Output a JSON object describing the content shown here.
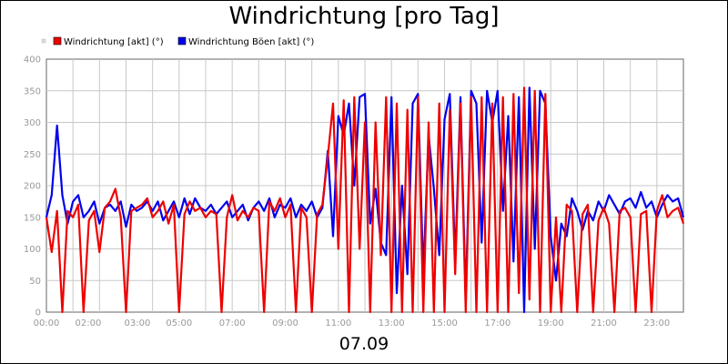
{
  "chart_data": {
    "type": "line",
    "title": "Windrichtung [pro Tag]",
    "date_label": "07.09",
    "grid": true,
    "legend_position": "top-left",
    "ylim": [
      0,
      400
    ],
    "y_ticks": [
      "0",
      "50",
      "100",
      "150",
      "200",
      "250",
      "300",
      "350",
      "400"
    ],
    "x_range": [
      "00:00",
      "24:00"
    ],
    "x_ticks": [
      {
        "time": "00:00",
        "label": "00:00"
      },
      {
        "time": "02:00",
        "label": "02:00"
      },
      {
        "time": "03:00",
        "label": "03:00"
      },
      {
        "time": "05:00",
        "label": "05:00"
      },
      {
        "time": "07:00",
        "label": "07:00"
      },
      {
        "time": "09:00",
        "label": "09:00"
      },
      {
        "time": "11:00",
        "label": "11:00"
      },
      {
        "time": "13:00",
        "label": "13:00"
      },
      {
        "time": "15:00",
        "label": "15:00"
      },
      {
        "time": "17:00",
        "label": "17:00"
      },
      {
        "time": "19:00",
        "label": "19:00"
      },
      {
        "time": "21:00",
        "label": "21:00"
      },
      {
        "time": "23:00",
        "label": "23:00"
      }
    ],
    "series": [
      {
        "name": "Windrichtung Böen [akt] (°)",
        "color": "#0000ee",
        "points": [
          [
            "00:00",
            150
          ],
          [
            "00:12",
            185
          ],
          [
            "00:24",
            295
          ],
          [
            "00:36",
            185
          ],
          [
            "00:48",
            140
          ],
          [
            "01:00",
            175
          ],
          [
            "01:12",
            185
          ],
          [
            "01:24",
            150
          ],
          [
            "01:36",
            160
          ],
          [
            "01:48",
            175
          ],
          [
            "02:00",
            140
          ],
          [
            "02:12",
            165
          ],
          [
            "02:24",
            170
          ],
          [
            "02:36",
            160
          ],
          [
            "02:48",
            175
          ],
          [
            "03:00",
            135
          ],
          [
            "03:12",
            170
          ],
          [
            "03:24",
            160
          ],
          [
            "03:36",
            165
          ],
          [
            "03:48",
            175
          ],
          [
            "04:00",
            160
          ],
          [
            "04:12",
            175
          ],
          [
            "04:24",
            145
          ],
          [
            "04:36",
            160
          ],
          [
            "04:48",
            175
          ],
          [
            "05:00",
            150
          ],
          [
            "05:12",
            180
          ],
          [
            "05:24",
            155
          ],
          [
            "05:36",
            180
          ],
          [
            "05:48",
            165
          ],
          [
            "06:00",
            160
          ],
          [
            "06:12",
            170
          ],
          [
            "06:24",
            155
          ],
          [
            "06:36",
            165
          ],
          [
            "06:48",
            175
          ],
          [
            "07:00",
            150
          ],
          [
            "07:12",
            160
          ],
          [
            "07:24",
            170
          ],
          [
            "07:36",
            145
          ],
          [
            "07:48",
            165
          ],
          [
            "08:00",
            175
          ],
          [
            "08:12",
            160
          ],
          [
            "08:24",
            180
          ],
          [
            "08:36",
            150
          ],
          [
            "08:48",
            170
          ],
          [
            "09:00",
            165
          ],
          [
            "09:12",
            180
          ],
          [
            "09:24",
            150
          ],
          [
            "09:36",
            170
          ],
          [
            "09:48",
            160
          ],
          [
            "10:00",
            175
          ],
          [
            "10:12",
            150
          ],
          [
            "10:24",
            165
          ],
          [
            "10:36",
            255
          ],
          [
            "10:48",
            120
          ],
          [
            "11:00",
            310
          ],
          [
            "11:12",
            280
          ],
          [
            "11:24",
            330
          ],
          [
            "11:36",
            200
          ],
          [
            "11:48",
            340
          ],
          [
            "12:00",
            345
          ],
          [
            "12:12",
            140
          ],
          [
            "12:24",
            195
          ],
          [
            "12:36",
            110
          ],
          [
            "12:48",
            90
          ],
          [
            "13:00",
            340
          ],
          [
            "13:12",
            30
          ],
          [
            "13:24",
            200
          ],
          [
            "13:36",
            60
          ],
          [
            "13:48",
            330
          ],
          [
            "14:00",
            345
          ],
          [
            "14:12",
            60
          ],
          [
            "14:24",
            280
          ],
          [
            "14:36",
            195
          ],
          [
            "14:48",
            90
          ],
          [
            "15:00",
            305
          ],
          [
            "15:12",
            345
          ],
          [
            "15:24",
            80
          ],
          [
            "15:36",
            340
          ],
          [
            "15:48",
            20
          ],
          [
            "16:00",
            350
          ],
          [
            "16:12",
            330
          ],
          [
            "16:24",
            110
          ],
          [
            "16:36",
            350
          ],
          [
            "16:48",
            300
          ],
          [
            "17:00",
            350
          ],
          [
            "17:12",
            160
          ],
          [
            "17:24",
            310
          ],
          [
            "17:36",
            80
          ],
          [
            "17:48",
            340
          ],
          [
            "18:00",
            0
          ],
          [
            "18:12",
            355
          ],
          [
            "18:24",
            100
          ],
          [
            "18:36",
            350
          ],
          [
            "18:48",
            330
          ],
          [
            "19:00",
            120
          ],
          [
            "19:12",
            50
          ],
          [
            "19:24",
            140
          ],
          [
            "19:36",
            120
          ],
          [
            "19:48",
            180
          ],
          [
            "20:00",
            160
          ],
          [
            "20:12",
            130
          ],
          [
            "20:24",
            160
          ],
          [
            "20:36",
            145
          ],
          [
            "20:48",
            175
          ],
          [
            "21:00",
            160
          ],
          [
            "21:12",
            185
          ],
          [
            "21:24",
            170
          ],
          [
            "21:36",
            155
          ],
          [
            "21:48",
            175
          ],
          [
            "22:00",
            180
          ],
          [
            "22:12",
            165
          ],
          [
            "22:24",
            190
          ],
          [
            "22:36",
            165
          ],
          [
            "22:48",
            175
          ],
          [
            "23:00",
            150
          ],
          [
            "23:12",
            170
          ],
          [
            "23:24",
            185
          ],
          [
            "23:36",
            175
          ],
          [
            "23:48",
            180
          ],
          [
            "24:00",
            150
          ]
        ]
      },
      {
        "name": "Windrichtung [akt] (°)",
        "color": "#ee0000",
        "points": [
          [
            "00:00",
            150
          ],
          [
            "00:12",
            95
          ],
          [
            "00:24",
            160
          ],
          [
            "00:36",
            0
          ],
          [
            "00:48",
            160
          ],
          [
            "01:00",
            150
          ],
          [
            "01:12",
            170
          ],
          [
            "01:24",
            0
          ],
          [
            "01:36",
            145
          ],
          [
            "01:48",
            160
          ],
          [
            "02:00",
            95
          ],
          [
            "02:12",
            165
          ],
          [
            "02:24",
            175
          ],
          [
            "02:36",
            195
          ],
          [
            "02:48",
            150
          ],
          [
            "03:00",
            0
          ],
          [
            "03:12",
            160
          ],
          [
            "03:24",
            165
          ],
          [
            "03:36",
            170
          ],
          [
            "03:48",
            180
          ],
          [
            "04:00",
            150
          ],
          [
            "04:12",
            160
          ],
          [
            "04:24",
            175
          ],
          [
            "04:36",
            140
          ],
          [
            "04:48",
            170
          ],
          [
            "05:00",
            0
          ],
          [
            "05:12",
            155
          ],
          [
            "05:24",
            175
          ],
          [
            "05:36",
            160
          ],
          [
            "05:48",
            165
          ],
          [
            "06:00",
            150
          ],
          [
            "06:12",
            160
          ],
          [
            "06:24",
            155
          ],
          [
            "06:36",
            0
          ],
          [
            "06:48",
            150
          ],
          [
            "07:00",
            185
          ],
          [
            "07:12",
            145
          ],
          [
            "07:24",
            160
          ],
          [
            "07:36",
            150
          ],
          [
            "07:48",
            165
          ],
          [
            "08:00",
            160
          ],
          [
            "08:12",
            0
          ],
          [
            "08:24",
            175
          ],
          [
            "08:36",
            160
          ],
          [
            "08:48",
            180
          ],
          [
            "09:00",
            150
          ],
          [
            "09:12",
            170
          ],
          [
            "09:24",
            0
          ],
          [
            "09:36",
            165
          ],
          [
            "09:48",
            150
          ],
          [
            "10:00",
            0
          ],
          [
            "10:12",
            155
          ],
          [
            "10:24",
            170
          ],
          [
            "10:36",
            245
          ],
          [
            "10:48",
            330
          ],
          [
            "11:00",
            100
          ],
          [
            "11:12",
            335
          ],
          [
            "11:24",
            0
          ],
          [
            "11:36",
            340
          ],
          [
            "11:48",
            100
          ],
          [
            "12:00",
            300
          ],
          [
            "12:12",
            0
          ],
          [
            "12:24",
            300
          ],
          [
            "12:36",
            90
          ],
          [
            "12:48",
            340
          ],
          [
            "13:00",
            0
          ],
          [
            "13:12",
            330
          ],
          [
            "13:24",
            0
          ],
          [
            "13:36",
            320
          ],
          [
            "13:48",
            0
          ],
          [
            "14:00",
            340
          ],
          [
            "14:12",
            0
          ],
          [
            "14:24",
            300
          ],
          [
            "14:36",
            0
          ],
          [
            "14:48",
            330
          ],
          [
            "15:00",
            0
          ],
          [
            "15:12",
            320
          ],
          [
            "15:24",
            60
          ],
          [
            "15:36",
            330
          ],
          [
            "15:48",
            0
          ],
          [
            "16:00",
            340
          ],
          [
            "16:12",
            0
          ],
          [
            "16:24",
            340
          ],
          [
            "16:36",
            0
          ],
          [
            "16:48",
            330
          ],
          [
            "17:00",
            0
          ],
          [
            "17:12",
            340
          ],
          [
            "17:24",
            0
          ],
          [
            "17:36",
            345
          ],
          [
            "17:48",
            30
          ],
          [
            "18:00",
            355
          ],
          [
            "18:12",
            20
          ],
          [
            "18:24",
            350
          ],
          [
            "18:36",
            0
          ],
          [
            "18:48",
            345
          ],
          [
            "19:00",
            0
          ],
          [
            "19:12",
            150
          ],
          [
            "19:24",
            0
          ],
          [
            "19:36",
            170
          ],
          [
            "19:48",
            160
          ],
          [
            "20:00",
            0
          ],
          [
            "20:12",
            155
          ],
          [
            "20:24",
            170
          ],
          [
            "20:36",
            0
          ],
          [
            "20:48",
            145
          ],
          [
            "21:00",
            165
          ],
          [
            "21:12",
            140
          ],
          [
            "21:24",
            0
          ],
          [
            "21:36",
            160
          ],
          [
            "21:48",
            165
          ],
          [
            "22:00",
            150
          ],
          [
            "22:12",
            0
          ],
          [
            "22:24",
            155
          ],
          [
            "22:36",
            160
          ],
          [
            "22:48",
            0
          ],
          [
            "23:00",
            160
          ],
          [
            "23:12",
            185
          ],
          [
            "23:24",
            150
          ],
          [
            "23:36",
            160
          ],
          [
            "23:48",
            165
          ],
          [
            "24:00",
            140
          ]
        ]
      }
    ],
    "legend": [
      {
        "label": "Windrichtung [akt] (°)",
        "color": "#ee0000"
      },
      {
        "label": "Windrichtung Böen [akt] (°)",
        "color": "#0000ee"
      }
    ]
  }
}
